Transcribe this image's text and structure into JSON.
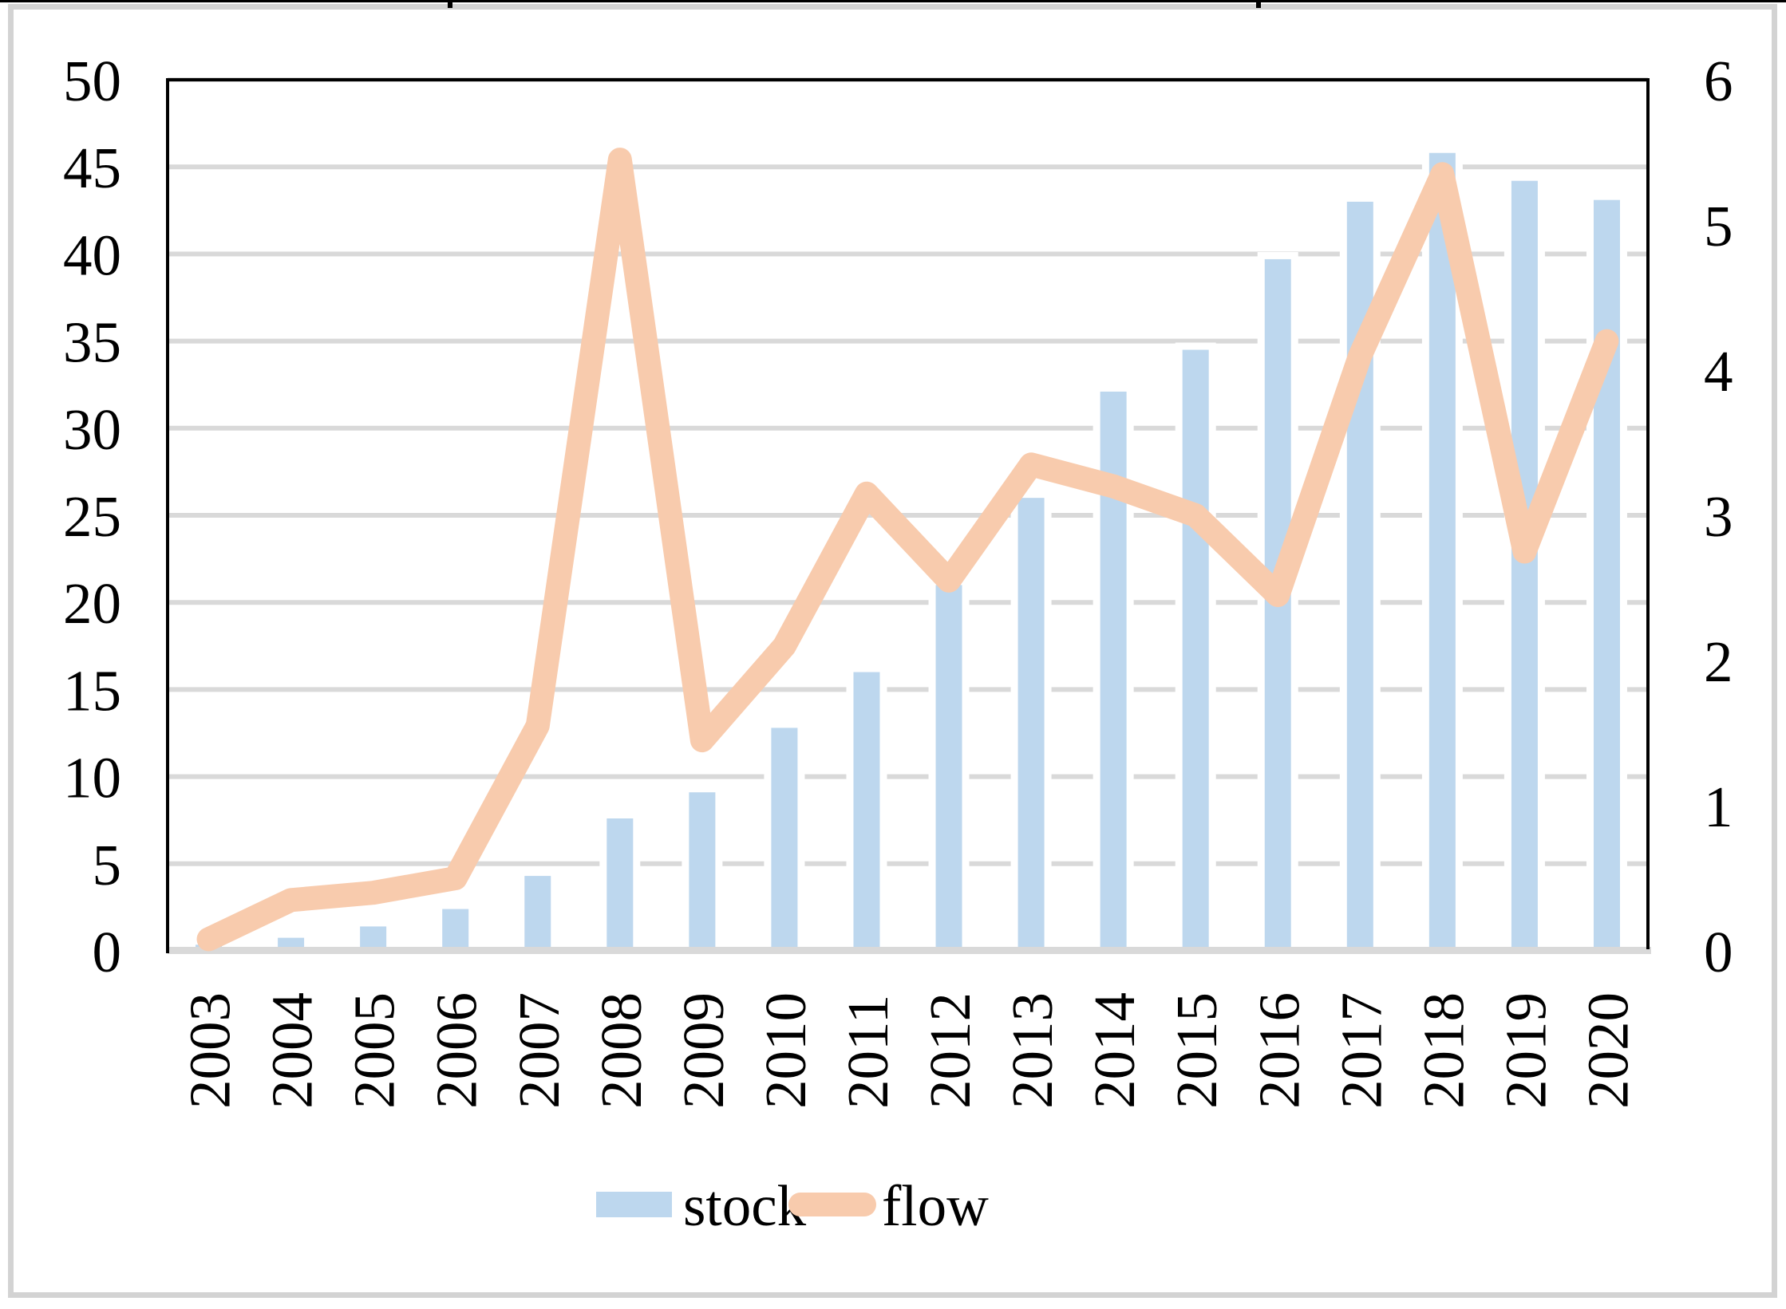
{
  "figure": {
    "background": "#ffffff",
    "border_color": "#d3d3d3",
    "top_artifact": {
      "color": "#000000",
      "line_height": 3,
      "segments": [
        [
          0,
          561
        ],
        [
          567,
          1574
        ],
        [
          1580,
          2238
        ]
      ],
      "ticks": [
        561,
        1574
      ],
      "tick_width": 6,
      "tick_height": 10
    }
  },
  "chart_data": {
    "type": "bar+line combo",
    "title": "",
    "xlabel": "",
    "ylabel": "",
    "categories": [
      "2003",
      "2004",
      "2005",
      "2006",
      "2007",
      "2008",
      "2009",
      "2010",
      "2011",
      "2012",
      "2013",
      "2014",
      "2015",
      "2016",
      "2017",
      "2018",
      "2019",
      "2020"
    ],
    "series": [
      {
        "name": "stock",
        "type": "bar",
        "axis": "left",
        "color": "#bdd7ee",
        "values": [
          0.35,
          0.75,
          1.4,
          2.4,
          4.3,
          7.6,
          9.1,
          12.8,
          16,
          21,
          26,
          32.1,
          34.5,
          39.7,
          43,
          45.8,
          44.2,
          43.1
        ]
      },
      {
        "name": "flow",
        "type": "line",
        "axis": "right",
        "color": "#f8cbad",
        "values": [
          0.08,
          0.35,
          0.4,
          0.5,
          1.55,
          5.45,
          1.45,
          2.1,
          3.15,
          2.55,
          3.35,
          3.2,
          3,
          2.45,
          4.1,
          5.35,
          2.75,
          4.2
        ]
      }
    ],
    "left_axis": {
      "min": 0,
      "max": 50,
      "step": 5,
      "ticks": [
        "0",
        "5",
        "10",
        "15",
        "20",
        "25",
        "30",
        "35",
        "40",
        "45",
        "50"
      ]
    },
    "right_axis": {
      "min": 0,
      "max": 6,
      "step": 1,
      "ticks": [
        "0",
        "1",
        "2",
        "3",
        "4",
        "5",
        "6"
      ]
    },
    "grid": true,
    "gridline_color": "#d9d9d9",
    "plot_border_color": "#000000",
    "category_axis_color": "#d9d9d9",
    "legend_position": "bottom"
  },
  "legend": {
    "items": [
      {
        "label": "stock",
        "swatch": "bar-swatch",
        "color": "#bdd7ee"
      },
      {
        "label": "flow",
        "swatch": "line-swatch",
        "color": "#f8cbad"
      }
    ]
  }
}
